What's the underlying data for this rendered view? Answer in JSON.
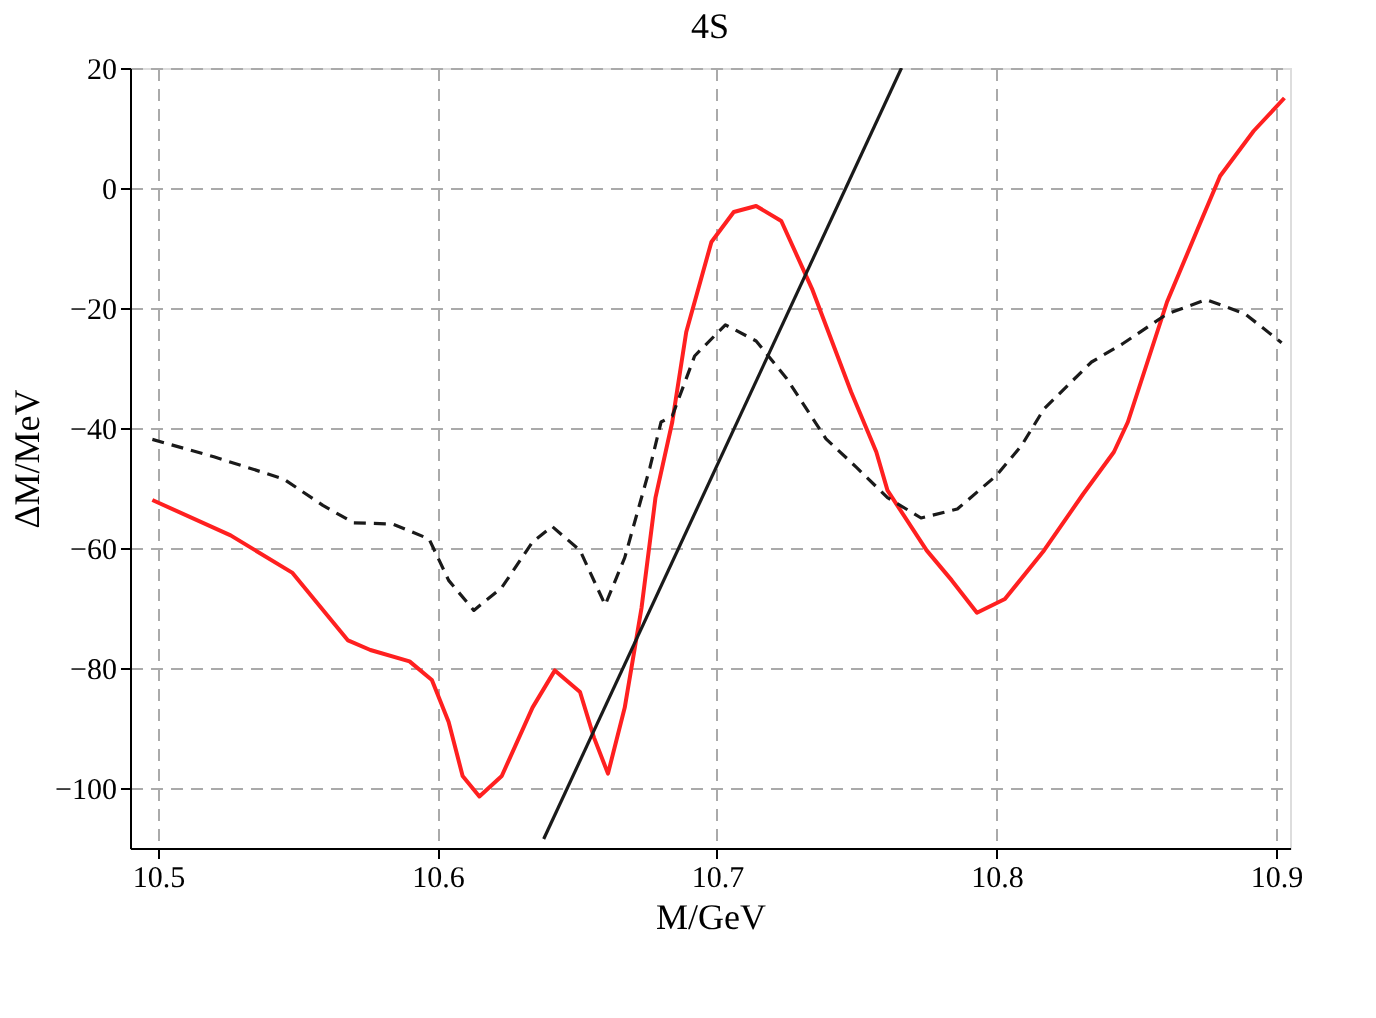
{
  "chart_data": {
    "type": "line",
    "title": "4S",
    "xlabel": "M/GeV",
    "ylabel": "ΔM/MeV",
    "xlim": [
      10.49,
      10.905
    ],
    "ylim": [
      -110,
      20
    ],
    "xticks": [
      {
        "value": 10.5,
        "label": "10.5"
      },
      {
        "value": 10.6,
        "label": "10.6"
      },
      {
        "value": 10.7,
        "label": "10.7"
      },
      {
        "value": 10.8,
        "label": "10.8"
      },
      {
        "value": 10.9,
        "label": "10.9"
      }
    ],
    "yticks": [
      -100,
      -80,
      -60,
      -40,
      -20,
      0,
      20
    ],
    "grid": true,
    "marker": "none",
    "series": [
      {
        "color": "#ff2020",
        "line_style": "solid",
        "x": [
          10.498,
          10.526,
          10.548,
          10.568,
          10.576,
          10.59,
          10.598,
          10.604,
          10.609,
          10.615,
          10.623,
          10.634,
          10.642,
          10.651,
          10.656,
          10.661,
          10.667,
          10.673,
          10.678,
          10.684,
          10.689,
          10.698,
          10.706,
          10.714,
          10.723,
          10.734,
          10.748,
          10.757,
          10.761,
          10.775,
          10.784,
          10.793,
          10.803,
          10.817,
          10.831,
          10.842,
          10.847,
          10.861,
          10.872,
          10.88,
          10.892,
          10.903
        ],
        "values": [
          -52,
          -57.9,
          -64.1,
          -75.4,
          -77,
          -78.9,
          -82,
          -89,
          -98,
          -101.4,
          -98,
          -86.6,
          -80.4,
          -84,
          -91.6,
          -97.6,
          -86.6,
          -70,
          -51.6,
          -39,
          -24,
          -9,
          -4,
          -3,
          -5.5,
          -16.8,
          -34,
          -44,
          -50.4,
          -60.4,
          -65.4,
          -70.8,
          -68.5,
          -60.4,
          -51,
          -44,
          -39,
          -19,
          -6.8,
          2,
          9.5,
          15
        ]
      },
      {
        "color": "#1a1a1a",
        "line_style": "dashed",
        "x": [
          10.498,
          10.52,
          10.545,
          10.559,
          10.57,
          10.584,
          10.597,
          10.604,
          10.613,
          10.623,
          10.634,
          10.641,
          10.651,
          10.66,
          10.667,
          10.676,
          10.68,
          10.684,
          10.692,
          10.703,
          10.714,
          10.725,
          10.739,
          10.75,
          10.761,
          10.773,
          10.786,
          10.8,
          10.809,
          10.817,
          10.834,
          10.845,
          10.861,
          10.875,
          10.889,
          10.902
        ],
        "values": [
          -41.9,
          -44.8,
          -48.5,
          -52.9,
          -55.8,
          -56,
          -58.5,
          -65.4,
          -70.4,
          -66.6,
          -59,
          -56.4,
          -60.4,
          -69.5,
          -61.6,
          -46.6,
          -39,
          -38,
          -28,
          -22.8,
          -25.5,
          -31.8,
          -41.8,
          -46.6,
          -51.6,
          -55,
          -53.5,
          -47.9,
          -42.9,
          -36.8,
          -29,
          -26,
          -21,
          -18.6,
          -21,
          -25.8
        ]
      },
      {
        "color": "#1a1a1a",
        "line_style": "solid",
        "x": [
          10.638,
          10.766
        ],
        "values": [
          -108.5,
          20
        ]
      }
    ]
  }
}
